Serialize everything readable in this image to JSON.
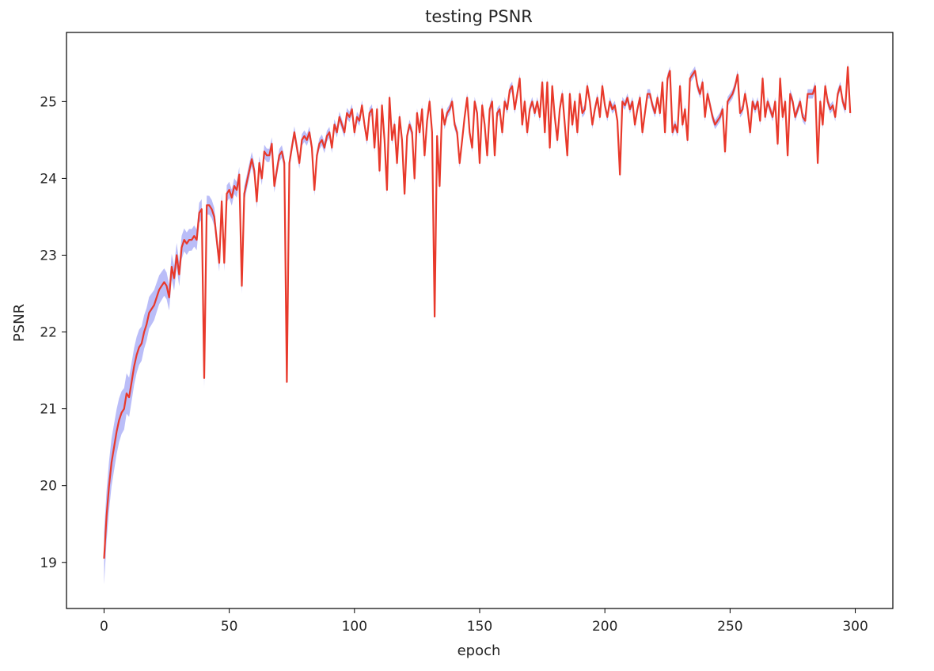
{
  "chart_data": {
    "type": "line",
    "title": "testing PSNR",
    "xlabel": "epoch",
    "ylabel": "PSNR",
    "xlim": [
      -15,
      315
    ],
    "ylim": [
      18.4,
      25.9
    ],
    "xticks": [
      0,
      50,
      100,
      150,
      200,
      250,
      300
    ],
    "yticks": [
      19,
      20,
      21,
      22,
      23,
      24,
      25
    ],
    "grid": false,
    "legend": "none",
    "colors": {
      "line": "#e8392b",
      "band": "#aeb2f7",
      "axes": "#000000"
    },
    "series": [
      {
        "points": [
          [
            0,
            19.05
          ],
          [
            1,
            19.6
          ],
          [
            2,
            20.0
          ],
          [
            3,
            20.3
          ],
          [
            4,
            20.5
          ],
          [
            5,
            20.7
          ],
          [
            6,
            20.85
          ],
          [
            7,
            20.95
          ],
          [
            8,
            21.0
          ],
          [
            9,
            21.2
          ],
          [
            10,
            21.15
          ],
          [
            11,
            21.35
          ],
          [
            12,
            21.55
          ],
          [
            13,
            21.7
          ],
          [
            14,
            21.8
          ],
          [
            15,
            21.85
          ],
          [
            16,
            22.0
          ],
          [
            17,
            22.1
          ],
          [
            18,
            22.25
          ],
          [
            19,
            22.3
          ],
          [
            20,
            22.35
          ],
          [
            21,
            22.45
          ],
          [
            22,
            22.55
          ],
          [
            23,
            22.6
          ],
          [
            24,
            22.65
          ],
          [
            25,
            22.6
          ],
          [
            26,
            22.45
          ],
          [
            27,
            22.85
          ],
          [
            28,
            22.7
          ],
          [
            29,
            23.0
          ],
          [
            30,
            22.75
          ],
          [
            31,
            23.1
          ],
          [
            32,
            23.2
          ],
          [
            33,
            23.15
          ],
          [
            34,
            23.2
          ],
          [
            35,
            23.2
          ],
          [
            36,
            23.25
          ],
          [
            37,
            23.2
          ],
          [
            38,
            23.55
          ],
          [
            39,
            23.6
          ],
          [
            40,
            21.4
          ],
          [
            41,
            23.65
          ],
          [
            42,
            23.65
          ],
          [
            43,
            23.6
          ],
          [
            44,
            23.5
          ],
          [
            45,
            23.2
          ],
          [
            46,
            22.9
          ],
          [
            47,
            23.7
          ],
          [
            48,
            22.9
          ],
          [
            49,
            23.8
          ],
          [
            50,
            23.85
          ],
          [
            51,
            23.75
          ],
          [
            52,
            23.9
          ],
          [
            53,
            23.85
          ],
          [
            54,
            24.05
          ],
          [
            55,
            22.6
          ],
          [
            56,
            23.8
          ],
          [
            57,
            23.95
          ],
          [
            58,
            24.1
          ],
          [
            59,
            24.25
          ],
          [
            60,
            24.1
          ],
          [
            61,
            23.7
          ],
          [
            62,
            24.2
          ],
          [
            63,
            24.0
          ],
          [
            64,
            24.35
          ],
          [
            65,
            24.3
          ],
          [
            66,
            24.3
          ],
          [
            67,
            24.45
          ],
          [
            68,
            23.9
          ],
          [
            69,
            24.1
          ],
          [
            70,
            24.3
          ],
          [
            71,
            24.35
          ],
          [
            72,
            24.2
          ],
          [
            73,
            21.35
          ],
          [
            74,
            24.2
          ],
          [
            75,
            24.4
          ],
          [
            76,
            24.6
          ],
          [
            77,
            24.4
          ],
          [
            78,
            24.2
          ],
          [
            79,
            24.5
          ],
          [
            80,
            24.55
          ],
          [
            81,
            24.5
          ],
          [
            82,
            24.6
          ],
          [
            83,
            24.4
          ],
          [
            84,
            23.85
          ],
          [
            85,
            24.3
          ],
          [
            86,
            24.45
          ],
          [
            87,
            24.5
          ],
          [
            88,
            24.4
          ],
          [
            89,
            24.55
          ],
          [
            90,
            24.6
          ],
          [
            91,
            24.4
          ],
          [
            92,
            24.7
          ],
          [
            93,
            24.6
          ],
          [
            94,
            24.8
          ],
          [
            95,
            24.7
          ],
          [
            96,
            24.6
          ],
          [
            97,
            24.85
          ],
          [
            98,
            24.8
          ],
          [
            99,
            24.9
          ],
          [
            100,
            24.6
          ],
          [
            101,
            24.8
          ],
          [
            102,
            24.75
          ],
          [
            103,
            24.95
          ],
          [
            104,
            24.7
          ],
          [
            105,
            24.5
          ],
          [
            106,
            24.85
          ],
          [
            107,
            24.9
          ],
          [
            108,
            24.4
          ],
          [
            109,
            24.9
          ],
          [
            110,
            24.1
          ],
          [
            111,
            24.95
          ],
          [
            112,
            24.5
          ],
          [
            113,
            23.85
          ],
          [
            114,
            25.05
          ],
          [
            115,
            24.5
          ],
          [
            116,
            24.7
          ],
          [
            117,
            24.2
          ],
          [
            118,
            24.8
          ],
          [
            119,
            24.5
          ],
          [
            120,
            23.8
          ],
          [
            121,
            24.55
          ],
          [
            122,
            24.7
          ],
          [
            123,
            24.6
          ],
          [
            124,
            24.0
          ],
          [
            125,
            24.85
          ],
          [
            126,
            24.6
          ],
          [
            127,
            24.9
          ],
          [
            128,
            24.3
          ],
          [
            129,
            24.75
          ],
          [
            130,
            25.0
          ],
          [
            131,
            24.6
          ],
          [
            132,
            22.2
          ],
          [
            133,
            24.55
          ],
          [
            134,
            23.9
          ],
          [
            135,
            24.9
          ],
          [
            136,
            24.7
          ],
          [
            137,
            24.85
          ],
          [
            138,
            24.9
          ],
          [
            139,
            25.0
          ],
          [
            140,
            24.7
          ],
          [
            141,
            24.6
          ],
          [
            142,
            24.2
          ],
          [
            143,
            24.5
          ],
          [
            144,
            24.8
          ],
          [
            145,
            25.05
          ],
          [
            146,
            24.6
          ],
          [
            147,
            24.4
          ],
          [
            148,
            25.0
          ],
          [
            149,
            24.85
          ],
          [
            150,
            24.2
          ],
          [
            151,
            24.95
          ],
          [
            152,
            24.7
          ],
          [
            153,
            24.3
          ],
          [
            154,
            24.9
          ],
          [
            155,
            25.0
          ],
          [
            156,
            24.3
          ],
          [
            157,
            24.85
          ],
          [
            158,
            24.9
          ],
          [
            159,
            24.6
          ],
          [
            160,
            25.0
          ],
          [
            161,
            24.9
          ],
          [
            162,
            25.15
          ],
          [
            163,
            25.2
          ],
          [
            164,
            24.9
          ],
          [
            165,
            25.1
          ],
          [
            166,
            25.3
          ],
          [
            167,
            24.7
          ],
          [
            168,
            25.0
          ],
          [
            169,
            24.6
          ],
          [
            170,
            24.9
          ],
          [
            171,
            25.0
          ],
          [
            172,
            24.85
          ],
          [
            173,
            25.0
          ],
          [
            174,
            24.8
          ],
          [
            175,
            25.25
          ],
          [
            176,
            24.6
          ],
          [
            177,
            25.25
          ],
          [
            178,
            24.4
          ],
          [
            179,
            25.2
          ],
          [
            180,
            24.8
          ],
          [
            181,
            24.5
          ],
          [
            182,
            24.9
          ],
          [
            183,
            25.1
          ],
          [
            184,
            24.7
          ],
          [
            185,
            24.3
          ],
          [
            186,
            25.1
          ],
          [
            187,
            24.7
          ],
          [
            188,
            25.0
          ],
          [
            189,
            24.6
          ],
          [
            190,
            25.1
          ],
          [
            191,
            24.85
          ],
          [
            192,
            24.9
          ],
          [
            193,
            25.2
          ],
          [
            194,
            25.0
          ],
          [
            195,
            24.7
          ],
          [
            196,
            24.9
          ],
          [
            197,
            25.05
          ],
          [
            198,
            24.8
          ],
          [
            199,
            25.2
          ],
          [
            200,
            24.95
          ],
          [
            201,
            24.8
          ],
          [
            202,
            25.0
          ],
          [
            203,
            24.9
          ],
          [
            204,
            24.95
          ],
          [
            205,
            24.75
          ],
          [
            206,
            24.05
          ],
          [
            207,
            25.0
          ],
          [
            208,
            24.95
          ],
          [
            209,
            25.05
          ],
          [
            210,
            24.9
          ],
          [
            211,
            25.0
          ],
          [
            212,
            24.7
          ],
          [
            213,
            24.9
          ],
          [
            214,
            25.05
          ],
          [
            215,
            24.6
          ],
          [
            216,
            24.85
          ],
          [
            217,
            25.1
          ],
          [
            218,
            25.1
          ],
          [
            219,
            24.95
          ],
          [
            220,
            24.85
          ],
          [
            221,
            25.05
          ],
          [
            222,
            24.85
          ],
          [
            223,
            25.25
          ],
          [
            224,
            24.6
          ],
          [
            225,
            25.3
          ],
          [
            226,
            25.4
          ],
          [
            227,
            24.6
          ],
          [
            228,
            24.7
          ],
          [
            229,
            24.6
          ],
          [
            230,
            25.2
          ],
          [
            231,
            24.7
          ],
          [
            232,
            24.9
          ],
          [
            233,
            24.5
          ],
          [
            234,
            25.3
          ],
          [
            235,
            25.35
          ],
          [
            236,
            25.4
          ],
          [
            237,
            25.2
          ],
          [
            238,
            25.1
          ],
          [
            239,
            25.25
          ],
          [
            240,
            24.8
          ],
          [
            241,
            25.1
          ],
          [
            242,
            24.95
          ],
          [
            243,
            24.8
          ],
          [
            244,
            24.7
          ],
          [
            245,
            24.75
          ],
          [
            246,
            24.8
          ],
          [
            247,
            24.9
          ],
          [
            248,
            24.35
          ],
          [
            249,
            25.0
          ],
          [
            250,
            25.05
          ],
          [
            251,
            25.1
          ],
          [
            252,
            25.2
          ],
          [
            253,
            25.35
          ],
          [
            254,
            24.85
          ],
          [
            255,
            24.9
          ],
          [
            256,
            25.1
          ],
          [
            257,
            24.9
          ],
          [
            258,
            24.6
          ],
          [
            259,
            25.0
          ],
          [
            260,
            24.9
          ],
          [
            261,
            25.0
          ],
          [
            262,
            24.75
          ],
          [
            263,
            25.3
          ],
          [
            264,
            24.8
          ],
          [
            265,
            25.0
          ],
          [
            266,
            24.9
          ],
          [
            267,
            24.8
          ],
          [
            268,
            25.0
          ],
          [
            269,
            24.45
          ],
          [
            270,
            25.3
          ],
          [
            271,
            24.8
          ],
          [
            272,
            25.0
          ],
          [
            273,
            24.3
          ],
          [
            274,
            25.1
          ],
          [
            275,
            25.0
          ],
          [
            276,
            24.8
          ],
          [
            277,
            24.9
          ],
          [
            278,
            25.0
          ],
          [
            279,
            24.8
          ],
          [
            280,
            24.75
          ],
          [
            281,
            25.1
          ],
          [
            282,
            25.1
          ],
          [
            283,
            25.1
          ],
          [
            284,
            25.2
          ],
          [
            285,
            24.2
          ],
          [
            286,
            25.0
          ],
          [
            287,
            24.7
          ],
          [
            288,
            25.2
          ],
          [
            289,
            25.0
          ],
          [
            290,
            24.9
          ],
          [
            291,
            24.95
          ],
          [
            292,
            24.8
          ],
          [
            293,
            25.1
          ],
          [
            294,
            25.2
          ],
          [
            295,
            25.0
          ],
          [
            296,
            24.9
          ],
          [
            297,
            25.45
          ],
          [
            298,
            24.85
          ]
        ]
      }
    ]
  }
}
